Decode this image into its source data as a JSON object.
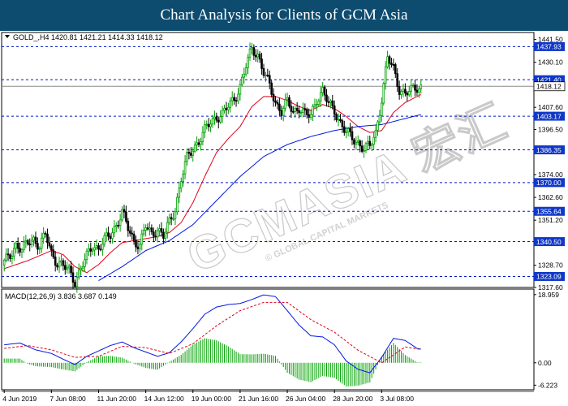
{
  "title": "Chart Analysis for Clients of GCM Asia",
  "symbol_line": "GOLD_,H4  1420.81 1421.21 1414.33 1418.12",
  "watermark": "GCMASIA 宏汇",
  "watermark_sub": "© GLOBAL CAPITAL MARKETS",
  "macd_label": "MACD(12,26,9) 3.836 3.687 0.149",
  "colors": {
    "title_bg": "#0d4b6f",
    "bull": "#00a000",
    "bear": "#000000",
    "ma_fast": "#e0001a",
    "ma_slow": "#0018e0",
    "level": "#0018c8",
    "label_bg": "#1038c8",
    "macd_line": "#0018e0",
    "signal_line": "#e0001a",
    "histogram": "#00a000"
  },
  "chart_data": [
    {
      "type": "candlestick",
      "symbol": "GOLD_",
      "timeframe": "H4",
      "ohlc_header": {
        "open": 1420.81,
        "high": 1421.21,
        "low": 1414.33,
        "close": 1418.12
      },
      "current_price": 1418.12,
      "ylim": [
        1317.6,
        1445.0
      ],
      "y_ticks": [
        1441.5,
        1430.1,
        1407.6,
        1396.5,
        1374.0,
        1362.6,
        1351.2,
        1328.7,
        1317.6
      ],
      "y_tick_labels": [
        "1441.50",
        "1430.10",
        "1407.60",
        "1396.50",
        "1374.00",
        "1362.60",
        "1351.20",
        "1328.70",
        "1317.60"
      ],
      "x_tick_labels": [
        "4 Jun 2019",
        "7 Jun 08:00",
        "11 Jun 20:00",
        "14 Jun 12:00",
        "19 Jun 00:00",
        "21 Jun 16:00",
        "26 Jun 04:00",
        "28 Jun 20:00",
        "3 Jul 08:00"
      ],
      "levels": [
        1437.93,
        1421.4,
        1403.17,
        1386.35,
        1370.0,
        1355.64,
        1340.5,
        1323.09
      ],
      "level_labels": [
        "1437.93",
        "1421.40",
        "1403.17",
        "1386.35",
        "1370.00",
        "1355.64",
        "1340.50",
        "1323.09"
      ],
      "close_path": [
        [
          0,
          1330
        ],
        [
          3,
          1334
        ],
        [
          6,
          1339
        ],
        [
          9,
          1336
        ],
        [
          12,
          1340
        ],
        [
          15,
          1342
        ],
        [
          18,
          1338
        ],
        [
          21,
          1344
        ],
        [
          24,
          1335
        ],
        [
          27,
          1330
        ],
        [
          30,
          1328
        ],
        [
          33,
          1326
        ],
        [
          36,
          1321
        ],
        [
          39,
          1327
        ],
        [
          42,
          1333
        ],
        [
          45,
          1339
        ],
        [
          48,
          1337
        ],
        [
          51,
          1341
        ],
        [
          54,
          1344
        ],
        [
          57,
          1349
        ],
        [
          60,
          1355
        ],
        [
          63,
          1347
        ],
        [
          66,
          1341
        ],
        [
          69,
          1339
        ],
        [
          72,
          1348
        ],
        [
          75,
          1344
        ],
        [
          78,
          1347
        ],
        [
          81,
          1343
        ],
        [
          84,
          1350
        ],
        [
          87,
          1357
        ],
        [
          90,
          1372
        ],
        [
          93,
          1382
        ],
        [
          96,
          1387
        ],
        [
          99,
          1391
        ],
        [
          102,
          1396
        ],
        [
          105,
          1400
        ],
        [
          108,
          1403
        ],
        [
          111,
          1404
        ],
        [
          114,
          1408
        ],
        [
          117,
          1412
        ],
        [
          120,
          1418
        ],
        [
          123,
          1428
        ],
        [
          126,
          1437
        ],
        [
          129,
          1434
        ],
        [
          132,
          1425
        ],
        [
          135,
          1418
        ],
        [
          138,
          1410
        ],
        [
          141,
          1406
        ],
        [
          144,
          1410
        ],
        [
          147,
          1405
        ],
        [
          150,
          1408
        ],
        [
          153,
          1404
        ],
        [
          156,
          1403
        ],
        [
          159,
          1412
        ],
        [
          162,
          1416
        ],
        [
          165,
          1409
        ],
        [
          168,
          1406
        ],
        [
          171,
          1400
        ],
        [
          174,
          1395
        ],
        [
          177,
          1392
        ],
        [
          180,
          1390
        ],
        [
          183,
          1387
        ],
        [
          186,
          1388
        ],
        [
          189,
          1395
        ],
        [
          192,
          1412
        ],
        [
          195,
          1432
        ],
        [
          198,
          1427
        ],
        [
          201,
          1417
        ],
        [
          204,
          1414
        ],
        [
          207,
          1416
        ],
        [
          210,
          1418
        ],
        [
          212,
          1418
        ]
      ],
      "ma_fast": [
        [
          0,
          1327
        ],
        [
          12,
          1331
        ],
        [
          24,
          1336
        ],
        [
          30,
          1334
        ],
        [
          36,
          1328
        ],
        [
          42,
          1325
        ],
        [
          48,
          1329
        ],
        [
          54,
          1335
        ],
        [
          60,
          1340
        ],
        [
          66,
          1341
        ],
        [
          72,
          1342
        ],
        [
          78,
          1343
        ],
        [
          84,
          1345
        ],
        [
          90,
          1350
        ],
        [
          96,
          1360
        ],
        [
          102,
          1373
        ],
        [
          108,
          1385
        ],
        [
          114,
          1392
        ],
        [
          120,
          1398
        ],
        [
          126,
          1408
        ],
        [
          132,
          1413
        ],
        [
          138,
          1413
        ],
        [
          144,
          1411
        ],
        [
          150,
          1408
        ],
        [
          156,
          1406
        ],
        [
          162,
          1409
        ],
        [
          168,
          1407
        ],
        [
          174,
          1403
        ],
        [
          180,
          1398
        ],
        [
          186,
          1395
        ],
        [
          192,
          1396
        ],
        [
          198,
          1405
        ],
        [
          204,
          1410
        ],
        [
          210,
          1413
        ],
        [
          212,
          1414
        ]
      ],
      "ma_slow": [
        [
          48,
          1321
        ],
        [
          60,
          1328
        ],
        [
          72,
          1336
        ],
        [
          84,
          1341
        ],
        [
          96,
          1349
        ],
        [
          108,
          1361
        ],
        [
          120,
          1373
        ],
        [
          132,
          1383
        ],
        [
          144,
          1389
        ],
        [
          156,
          1393
        ],
        [
          168,
          1396
        ],
        [
          180,
          1398
        ],
        [
          192,
          1399
        ],
        [
          204,
          1402
        ],
        [
          212,
          1404
        ]
      ]
    },
    {
      "type": "macd",
      "params": "12,26,9",
      "macd": 3.836,
      "signal": 3.687,
      "histogram": 0.149,
      "ylim": [
        -7.5,
        20.5
      ],
      "y_tick_labels": [
        "18.959",
        "0.00",
        "-6.223"
      ],
      "y_ticks": [
        18.959,
        0.0,
        -6.223
      ],
      "macd_line": [
        [
          0,
          5.0
        ],
        [
          8,
          5.5
        ],
        [
          16,
          3.6
        ],
        [
          24,
          2.6
        ],
        [
          30,
          1.0
        ],
        [
          36,
          -0.5
        ],
        [
          42,
          1.8
        ],
        [
          48,
          3.3
        ],
        [
          54,
          4.8
        ],
        [
          60,
          5.8
        ],
        [
          66,
          4.2
        ],
        [
          72,
          3.0
        ],
        [
          78,
          1.8
        ],
        [
          84,
          2.8
        ],
        [
          90,
          5.8
        ],
        [
          96,
          9.5
        ],
        [
          102,
          13.5
        ],
        [
          108,
          15.5
        ],
        [
          114,
          16.2
        ],
        [
          120,
          16.5
        ],
        [
          126,
          17.6
        ],
        [
          132,
          18.9
        ],
        [
          138,
          18.4
        ],
        [
          144,
          14.5
        ],
        [
          150,
          10.5
        ],
        [
          156,
          7.5
        ],
        [
          162,
          7.2
        ],
        [
          168,
          5.0
        ],
        [
          174,
          0.5
        ],
        [
          180,
          -1.8
        ],
        [
          186,
          -2.8
        ],
        [
          192,
          1.5
        ],
        [
          198,
          6.8
        ],
        [
          204,
          6.2
        ],
        [
          210,
          4.0
        ],
        [
          212,
          3.8
        ]
      ],
      "signal_line": [
        [
          0,
          4.0
        ],
        [
          12,
          4.8
        ],
        [
          24,
          3.6
        ],
        [
          36,
          1.5
        ],
        [
          48,
          1.8
        ],
        [
          60,
          4.6
        ],
        [
          72,
          4.2
        ],
        [
          84,
          2.6
        ],
        [
          96,
          5.3
        ],
        [
          108,
          10.3
        ],
        [
          120,
          14.5
        ],
        [
          132,
          16.8
        ],
        [
          144,
          16.8
        ],
        [
          156,
          12.0
        ],
        [
          168,
          8.5
        ],
        [
          180,
          3.5
        ],
        [
          192,
          0.0
        ],
        [
          204,
          4.4
        ],
        [
          212,
          3.7
        ]
      ]
    }
  ]
}
